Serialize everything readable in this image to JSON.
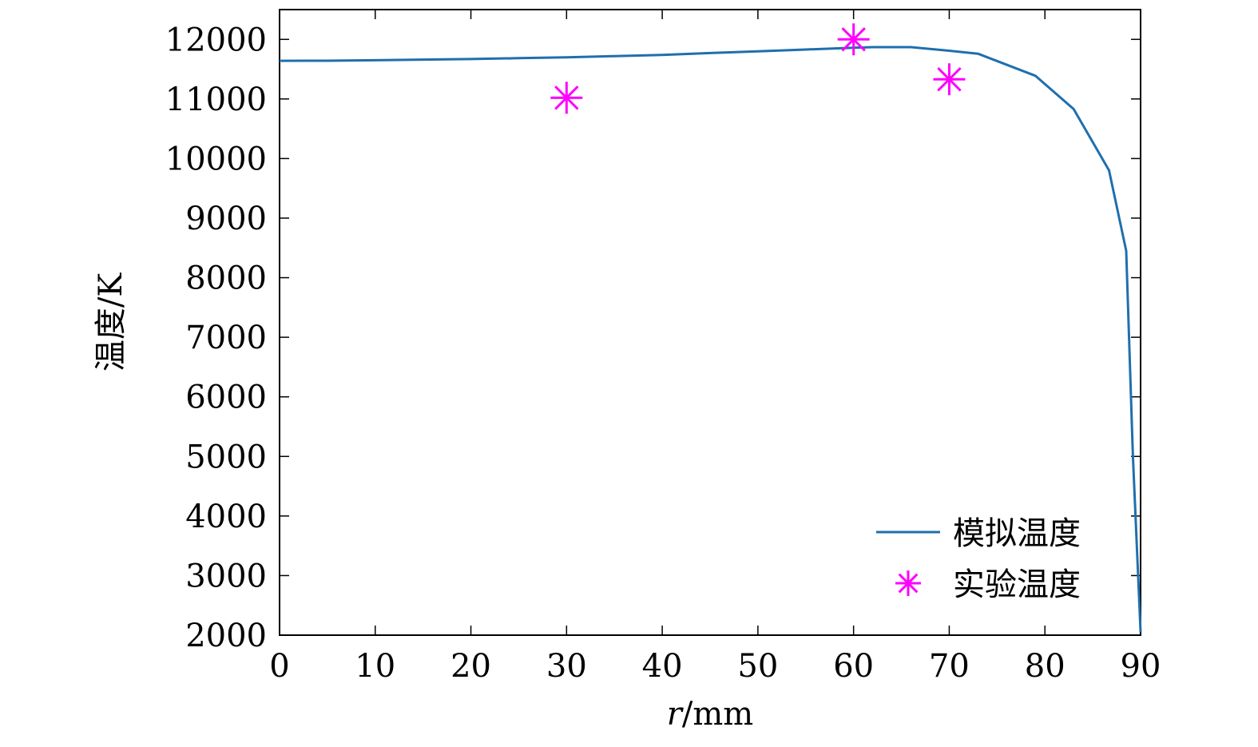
{
  "chart_data": {
    "type": "line",
    "title": "",
    "xlabel_var": "r",
    "xlabel_unit": "/mm",
    "ylabel": "温度/K",
    "xlim": [
      0,
      90
    ],
    "ylim": [
      2000,
      12500
    ],
    "xticks": [
      0,
      10,
      20,
      30,
      40,
      50,
      60,
      70,
      80,
      90
    ],
    "yticks": [
      2000,
      3000,
      4000,
      5000,
      6000,
      7000,
      8000,
      9000,
      10000,
      11000,
      12000
    ],
    "grid": false,
    "legend_position": "bottom-right",
    "series": [
      {
        "name": "模拟温度",
        "style": "line",
        "color": "#1f6fad",
        "x": [
          0,
          5,
          10,
          15,
          20,
          25,
          30,
          35,
          40,
          45,
          50,
          55,
          60,
          62,
          66,
          70,
          73,
          79,
          83,
          86.7,
          88.5,
          89.2,
          90
        ],
        "y": [
          11640,
          11642,
          11650,
          11660,
          11670,
          11685,
          11700,
          11720,
          11740,
          11770,
          11800,
          11830,
          11860,
          11870,
          11870,
          11810,
          11760,
          11390,
          10830,
          9800,
          8450,
          5000,
          2050
        ]
      },
      {
        "name": "实验温度",
        "style": "marker",
        "marker": "asterisk",
        "color": "#ff00ff",
        "x": [
          30,
          60,
          70
        ],
        "y": [
          11020,
          12000,
          11330
        ]
      }
    ]
  }
}
